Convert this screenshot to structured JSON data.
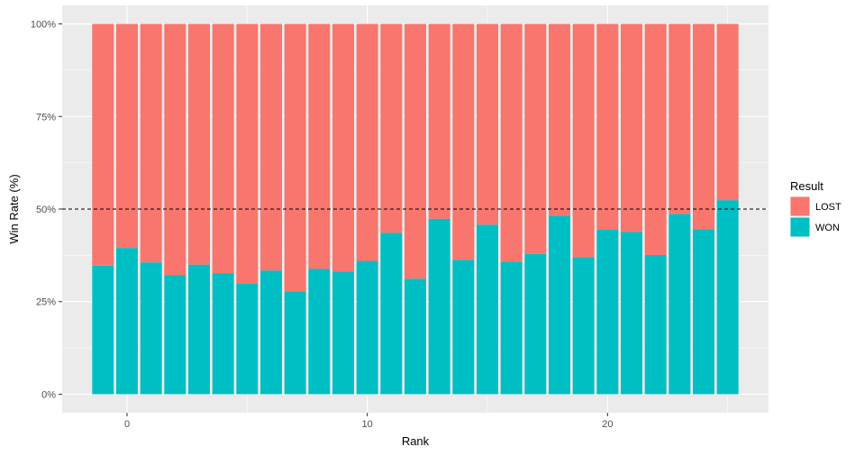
{
  "chart_data": {
    "type": "bar",
    "stacked": true,
    "x": [
      -1,
      0,
      1,
      2,
      3,
      4,
      5,
      6,
      7,
      8,
      9,
      10,
      11,
      12,
      13,
      14,
      15,
      16,
      17,
      18,
      19,
      20,
      21,
      22,
      23,
      24,
      25
    ],
    "series": [
      {
        "name": "WON",
        "color": "#00bfc4",
        "values": [
          34.7,
          39.5,
          35.6,
          32.2,
          35.0,
          32.6,
          29.8,
          33.4,
          27.8,
          33.9,
          33.1,
          36.0,
          43.6,
          31.2,
          47.4,
          36.3,
          45.8,
          35.8,
          37.9,
          48.2,
          37.0,
          44.4,
          43.8,
          37.6,
          48.7,
          44.6,
          52.4
        ]
      },
      {
        "name": "LOST",
        "color": "#f8766d",
        "values": [
          65.3,
          60.5,
          64.4,
          67.8,
          65.0,
          67.4,
          70.2,
          66.6,
          72.2,
          66.1,
          66.9,
          64.0,
          56.4,
          68.8,
          52.6,
          63.7,
          54.2,
          64.2,
          62.1,
          51.8,
          63.0,
          55.6,
          56.2,
          62.4,
          51.3,
          55.4,
          47.6
        ]
      }
    ],
    "xlabel": "Rank",
    "ylabel": "Win Rate (%)",
    "xlim": [
      -2.7,
      26.7
    ],
    "ylim": [
      -5,
      105
    ],
    "xticks": [
      0,
      10,
      20
    ],
    "xtick_labels": [
      "0",
      "10",
      "20"
    ],
    "yticks": [
      0,
      25,
      50,
      75,
      100
    ],
    "ytick_labels": [
      "0%",
      "25%",
      "50%",
      "75%",
      "100%"
    ],
    "reference_line": {
      "y": 50,
      "style": "dashed"
    },
    "grid": true,
    "legend": {
      "title": "Result",
      "position": "right",
      "entries": [
        "LOST",
        "WON"
      ]
    },
    "panel_color": "#ebebeb",
    "grid_color": "#ffffff"
  }
}
